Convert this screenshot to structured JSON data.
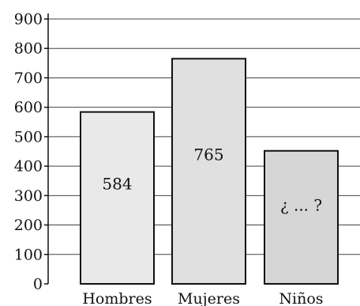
{
  "chart_data": {
    "type": "bar",
    "categories": [
      "Hombres",
      "Mujeres",
      "Niños"
    ],
    "values": [
      584,
      765,
      452
    ],
    "data_labels": [
      "584",
      "765",
      "¿ ... ?"
    ],
    "ylim": [
      0,
      900
    ],
    "yticks": [
      0,
      100,
      200,
      300,
      400,
      500,
      600,
      700,
      800,
      900
    ],
    "ytick_labels": [
      "0",
      "100",
      "200",
      "300",
      "400",
      "500",
      "600",
      "700",
      "800",
      "900"
    ],
    "grid": true,
    "colors": {
      "bar_fills": [
        "#e9e9e9",
        "#e0e0e0",
        "#d6d6d6"
      ],
      "bar_stroke": "#111111",
      "grid": "#444444",
      "axis": "#111111"
    }
  }
}
